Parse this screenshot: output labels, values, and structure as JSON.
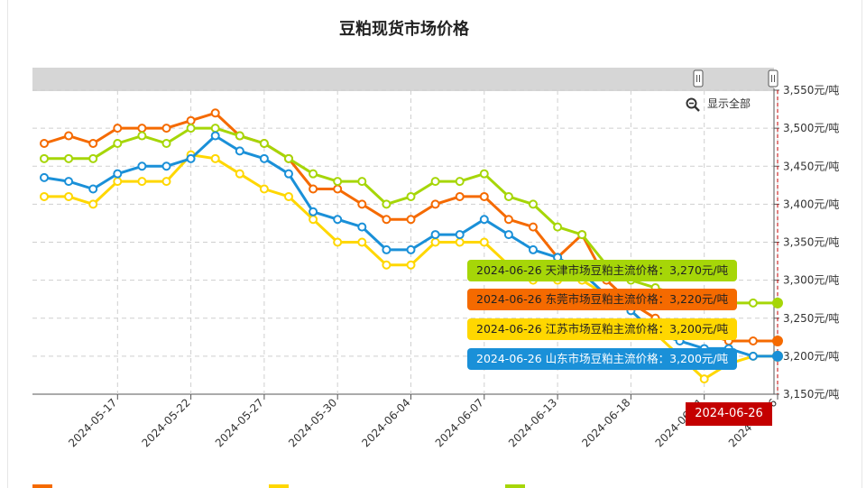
{
  "chart_data": {
    "type": "line",
    "title": "豆粕现货市场价格",
    "x_tick_labels": [
      "2024-05-17",
      "2024-05-22",
      "2024-05-27",
      "2024-05-30",
      "2024-06-04",
      "2024-06-07",
      "2024-06-13",
      "2024-06-18",
      "2024-06-21",
      "2024-06-26"
    ],
    "y_tick_labels": [
      "3,550元/吨",
      "3,500元/吨",
      "3,450元/吨",
      "3,400元/吨",
      "3,350元/吨",
      "3,300元/吨",
      "3,250元/吨",
      "3,200元/吨",
      "3,150元/吨"
    ],
    "ylim": [
      3150,
      3550
    ],
    "y_ticks": [
      3550,
      3500,
      3450,
      3400,
      3350,
      3300,
      3250,
      3200,
      3150
    ],
    "x": [
      "2024-05-14",
      "2024-05-15",
      "2024-05-16",
      "2024-05-17",
      "2024-05-20",
      "2024-05-21",
      "2024-05-22",
      "2024-05-23",
      "2024-05-24",
      "2024-05-27",
      "2024-05-28",
      "2024-05-29",
      "2024-05-30",
      "2024-05-31",
      "2024-06-03",
      "2024-06-04",
      "2024-06-05",
      "2024-06-06",
      "2024-06-07",
      "2024-06-11",
      "2024-06-12",
      "2024-06-13",
      "2024-06-14",
      "2024-06-17",
      "2024-06-18",
      "2024-06-19",
      "2024-06-20",
      "2024-06-21",
      "2024-06-24",
      "2024-06-25",
      "2024-06-26"
    ],
    "series": [
      {
        "name": "东莞",
        "color": "#f56a00",
        "values": [
          3480,
          3490,
          3480,
          3500,
          3500,
          3500,
          3510,
          3520,
          3490,
          3480,
          3460,
          3420,
          3420,
          3400,
          3380,
          3380,
          3400,
          3410,
          3410,
          3380,
          3370,
          3330,
          3360,
          3300,
          3270,
          3250,
          3240,
          3230,
          3220,
          3220,
          3220
        ]
      },
      {
        "name": "江苏",
        "color": "#ffd700",
        "values": [
          3410,
          3410,
          3400,
          3430,
          3430,
          3430,
          3465,
          3460,
          3440,
          3420,
          3410,
          3380,
          3350,
          3350,
          3320,
          3320,
          3350,
          3350,
          3350,
          3320,
          3300,
          3300,
          3300,
          3280,
          3260,
          3230,
          3200,
          3170,
          3190,
          3200,
          3200
        ]
      },
      {
        "name": "天津",
        "color": "#a6d608",
        "values": [
          3460,
          3460,
          3460,
          3480,
          3490,
          3480,
          3500,
          3500,
          3490,
          3480,
          3460,
          3440,
          3430,
          3430,
          3400,
          3410,
          3430,
          3430,
          3440,
          3410,
          3400,
          3370,
          3360,
          3320,
          3300,
          3290,
          3280,
          3270,
          3270,
          3270,
          3270
        ]
      },
      {
        "name": "山东",
        "color": "#1a90d8",
        "values": [
          3435,
          3430,
          3420,
          3440,
          3450,
          3450,
          3460,
          3490,
          3470,
          3460,
          3440,
          3390,
          3380,
          3370,
          3340,
          3340,
          3360,
          3360,
          3380,
          3360,
          3340,
          3330,
          3310,
          3280,
          3260,
          3230,
          3220,
          3210,
          3210,
          3200,
          3200
        ]
      }
    ],
    "tooltips": [
      {
        "text": "2024-06-26 天津市场豆粕主流价格：3,270元/吨",
        "bg": "#a6d608",
        "fg": "#222"
      },
      {
        "text": "2024-06-26 东莞市场豆粕主流价格：3,220元/吨",
        "bg": "#f56a00",
        "fg": "#222"
      },
      {
        "text": "2024-06-26 江苏市场豆粕主流价格：3,200元/吨",
        "bg": "#ffd700",
        "fg": "#222"
      },
      {
        "text": "2024-06-26 山东市场豆粕主流价格：3,200元/吨",
        "bg": "#1a90d8",
        "fg": "#fff"
      }
    ],
    "crosshair_label": "2024-06-26",
    "reset_zoom_label": "显示全部",
    "grid": true
  }
}
